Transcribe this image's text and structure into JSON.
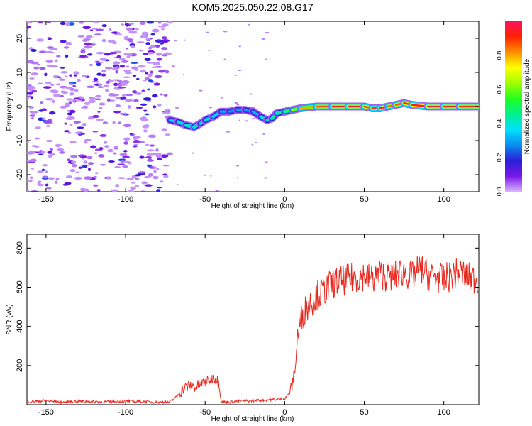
{
  "title": "KOM5.2025.050.22.08.G17",
  "colors": {
    "snr_line": "#e8281e",
    "background": "#ffffff",
    "axes": "#000000"
  },
  "chart_data": [
    {
      "type": "heatmap",
      "xlabel": "Height of straight line (km)",
      "ylabel": "Frequency (Hz)",
      "xlim": [
        -162,
        122
      ],
      "ylim": [
        -25,
        25
      ],
      "x_ticks": [
        -150,
        -100,
        -50,
        0,
        50,
        100
      ],
      "y_ticks": [
        -20,
        -10,
        0,
        10,
        20
      ],
      "colorbar": {
        "label": "Normalized spectral amplitude",
        "range": [
          0.0,
          1.0
        ],
        "ticks": [
          "0.0",
          "0.2",
          "0.4",
          "0.6",
          "0.8"
        ],
        "colormap": [
          "#d8b4ff",
          "#7a18e8",
          "#2a1fd8",
          "#0a8cf0",
          "#00e0ff",
          "#00f090",
          "#20ff20",
          "#a0ff00",
          "#ffff00",
          "#ff9000",
          "#ff2000",
          "#ff1060"
        ]
      },
      "ridge": {
        "x": [
          -72,
          -67,
          -62,
          -57,
          -53,
          -50,
          -45,
          -40,
          -35,
          -30,
          -25,
          -20,
          -15,
          -11,
          -8,
          -5,
          0,
          5,
          10,
          20,
          30,
          40,
          50,
          55,
          60,
          65,
          70,
          75,
          80,
          90,
          100,
          110,
          122
        ],
        "freq": [
          -4,
          -4.5,
          -5.5,
          -6,
          -5,
          -4,
          -3,
          -1.5,
          -1.5,
          -1,
          -1,
          -1.5,
          -3,
          -4,
          -3.5,
          -2,
          -1.5,
          -1,
          -0.5,
          0,
          0,
          0,
          0,
          -0.5,
          -0.5,
          0,
          0.5,
          1,
          0.5,
          0,
          0,
          0,
          0
        ],
        "amplitude": [
          0.35,
          0.4,
          0.45,
          0.5,
          0.45,
          0.4,
          0.4,
          0.35,
          0.3,
          0.3,
          0.3,
          0.3,
          0.35,
          0.45,
          0.45,
          0.45,
          0.5,
          0.6,
          0.75,
          0.85,
          0.9,
          0.95,
          0.9,
          0.85,
          0.95,
          0.85,
          0.85,
          0.9,
          0.95,
          0.95,
          0.95,
          0.9,
          0.9
        ]
      },
      "noise_region_x": [
        -162,
        -72
      ]
    },
    {
      "type": "line",
      "xlabel": "Height of straight line (km)",
      "ylabel": "SNR (v/v)",
      "xlim": [
        -162,
        122
      ],
      "ylim": [
        0,
        870
      ],
      "x_ticks": [
        -150,
        -100,
        -50,
        0,
        50,
        100
      ],
      "y_ticks": [
        200,
        400,
        600,
        800
      ],
      "series": [
        {
          "x": [
            -162,
            -150,
            -140,
            -130,
            -120,
            -110,
            -100,
            -90,
            -80,
            -72,
            -68,
            -64,
            -60,
            -56,
            -52,
            -48,
            -45,
            -43,
            -41,
            -40,
            -35,
            -30,
            -20,
            -10,
            0,
            3,
            5,
            7,
            8,
            10,
            12,
            15,
            20,
            25,
            30,
            35,
            40,
            45,
            50,
            55,
            60,
            65,
            70,
            75,
            80,
            85,
            90,
            95,
            100,
            105,
            110,
            115,
            122
          ],
          "values": [
            15,
            20,
            12,
            18,
            15,
            14,
            18,
            16,
            12,
            14,
            40,
            80,
            100,
            90,
            110,
            120,
            140,
            130,
            110,
            15,
            12,
            18,
            20,
            25,
            30,
            60,
            110,
            220,
            350,
            420,
            470,
            510,
            560,
            580,
            620,
            630,
            640,
            650,
            660,
            640,
            670,
            650,
            660,
            680,
            650,
            700,
            660,
            650,
            640,
            660,
            680,
            650,
            640
          ]
        }
      ]
    }
  ]
}
